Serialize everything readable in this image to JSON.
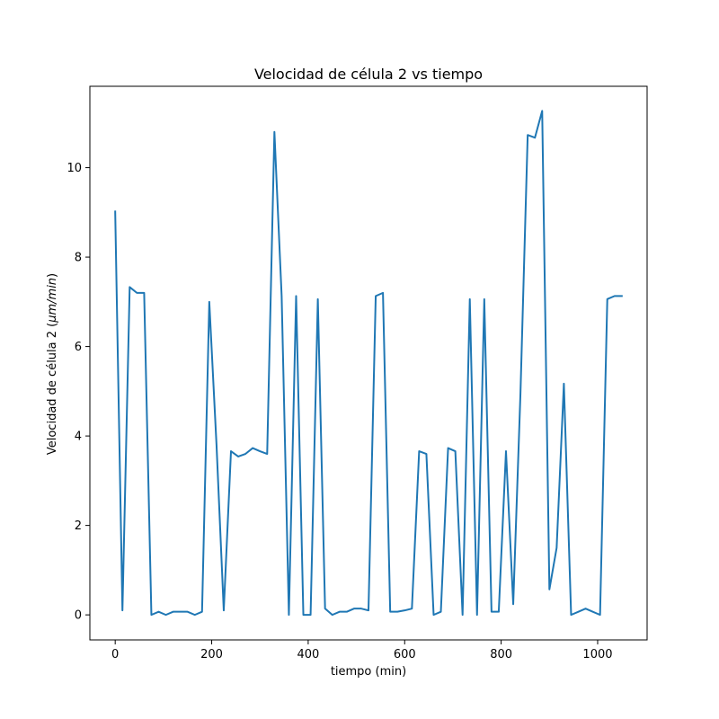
{
  "chart_data": {
    "type": "line",
    "title": "Velocidad de célula 2 vs tiempo",
    "xlabel": "tiempo (min)",
    "ylabel": "Velocidad de célula 2 (μm/min)",
    "ylabel_prefix": "Velocidad de célula 2 (",
    "ylabel_unit": "μm/min",
    "ylabel_suffix": ")",
    "xlim": [
      -52.5,
      1102.5
    ],
    "ylim": [
      -0.56,
      11.82
    ],
    "xticks": [
      0,
      200,
      400,
      600,
      800,
      1000
    ],
    "yticks": [
      0,
      2,
      4,
      6,
      8,
      10
    ],
    "xtick_labels": [
      "0",
      "200",
      "400",
      "600",
      "800",
      "1000"
    ],
    "ytick_labels": [
      "0",
      "2",
      "4",
      "6",
      "8",
      "10"
    ],
    "grid": false,
    "series": [
      {
        "color": "#1f77b4",
        "x": [
          0,
          15,
          30,
          45,
          60,
          75,
          90,
          105,
          120,
          135,
          150,
          165,
          180,
          195,
          210,
          225,
          240,
          255,
          270,
          285,
          300,
          315,
          330,
          345,
          360,
          375,
          390,
          405,
          420,
          435,
          450,
          465,
          480,
          495,
          510,
          525,
          540,
          555,
          570,
          585,
          600,
          615,
          630,
          645,
          660,
          675,
          690,
          705,
          720,
          735,
          750,
          765,
          780,
          795,
          810,
          825,
          840,
          855,
          870,
          885,
          900,
          915,
          930,
          945,
          960,
          975,
          990,
          1005,
          1020,
          1035,
          1050
        ],
        "y": [
          9.02,
          0.1,
          7.33,
          7.2,
          7.2,
          0.0,
          0.07,
          0.0,
          0.07,
          0.07,
          0.07,
          0.0,
          0.07,
          7.0,
          3.8,
          0.1,
          3.66,
          3.54,
          3.6,
          3.73,
          3.66,
          3.6,
          10.8,
          7.13,
          0.0,
          7.13,
          0.0,
          0.0,
          7.06,
          0.14,
          0.0,
          0.07,
          0.07,
          0.14,
          0.14,
          0.1,
          7.13,
          7.2,
          0.07,
          0.07,
          0.1,
          0.14,
          3.66,
          3.6,
          0.0,
          0.07,
          3.73,
          3.66,
          0.0,
          7.06,
          0.0,
          7.06,
          0.07,
          0.07,
          3.66,
          0.24,
          4.95,
          10.73,
          10.67,
          11.27,
          0.57,
          1.5,
          5.17,
          0.0,
          0.07,
          0.14,
          0.07,
          0.0,
          7.06,
          7.13,
          7.13
        ]
      }
    ]
  }
}
